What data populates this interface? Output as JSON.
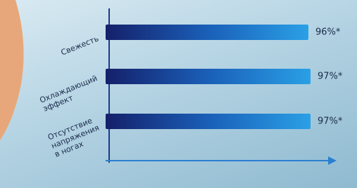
{
  "chart_data": {
    "type": "bar",
    "orientation": "horizontal",
    "categories": [
      "Свежесть",
      "Охлаждающий\nэффект",
      "Отсутствие\nнапряжения\nв ногах"
    ],
    "values": [
      96,
      97,
      97
    ],
    "value_labels": [
      "96%*",
      "97%*",
      "97%*"
    ],
    "color": "#1e8fd8",
    "xlim": [
      0,
      100
    ]
  }
}
